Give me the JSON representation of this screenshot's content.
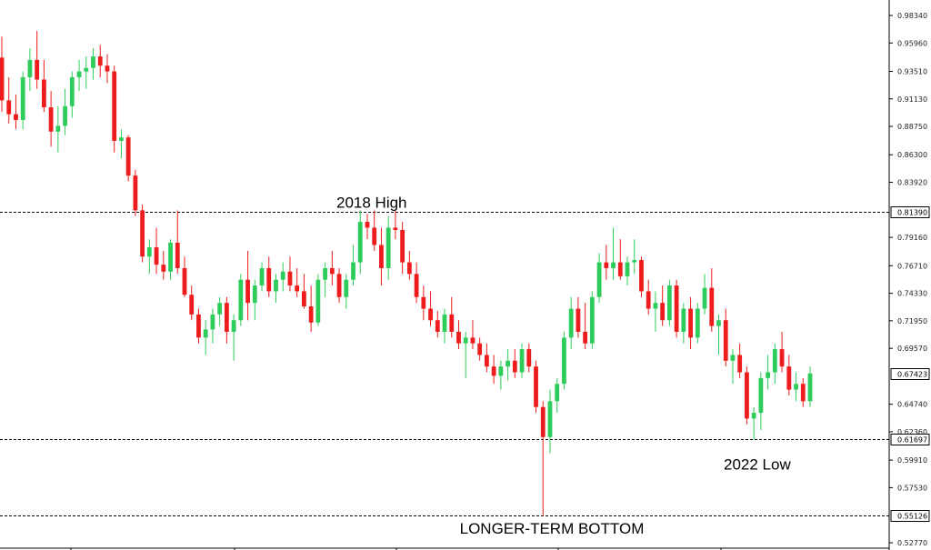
{
  "chart_data": {
    "type": "candlestick",
    "ylim": [
      0.5277,
      0.9834
    ],
    "grid": false,
    "y_axis_side": "right",
    "y_ticks": [
      "0.98340",
      "0.95960",
      "0.93510",
      "0.91130",
      "0.88750",
      "0.86300",
      "0.83920",
      "0.79160",
      "0.76710",
      "0.74330",
      "0.71950",
      "0.69570",
      "0.64740",
      "0.62360",
      "0.59910",
      "0.57530",
      "0.52770"
    ],
    "levels": [
      {
        "value": 0.8139,
        "label": "0.81390",
        "annotation": "2018 High",
        "line_color": "#000000",
        "annotation_anchor": "left"
      },
      {
        "value": 0.61697,
        "label": "0.61697",
        "annotation": "2022 Low",
        "line_color": "#000000",
        "annotation_anchor": "right"
      },
      {
        "value": 0.55126,
        "label": "0.55126",
        "annotation": "LONGER-TERM BOTTOM",
        "line_color": "#000000",
        "annotation_anchor": "center"
      }
    ],
    "current_price": {
      "value": 0.67423,
      "label": "0.67423"
    },
    "colors": {
      "up": "#2ecc5a",
      "down": "#ee1c1c",
      "axis": "#000000"
    },
    "candles": [
      [
        0.947,
        0.965,
        0.9,
        0.91
      ],
      [
        0.91,
        0.93,
        0.89,
        0.898
      ],
      [
        0.898,
        0.915,
        0.885,
        0.893
      ],
      [
        0.893,
        0.935,
        0.885,
        0.93
      ],
      [
        0.93,
        0.955,
        0.918,
        0.945
      ],
      [
        0.945,
        0.97,
        0.92,
        0.928
      ],
      [
        0.928,
        0.945,
        0.9,
        0.904
      ],
      [
        0.904,
        0.918,
        0.87,
        0.883
      ],
      [
        0.883,
        0.905,
        0.865,
        0.888
      ],
      [
        0.888,
        0.92,
        0.88,
        0.905
      ],
      [
        0.905,
        0.935,
        0.895,
        0.93
      ],
      [
        0.93,
        0.945,
        0.918,
        0.935
      ],
      [
        0.935,
        0.948,
        0.92,
        0.938
      ],
      [
        0.938,
        0.955,
        0.928,
        0.948
      ],
      [
        0.948,
        0.958,
        0.93,
        0.94
      ],
      [
        0.94,
        0.95,
        0.925,
        0.935
      ],
      [
        0.935,
        0.94,
        0.865,
        0.875
      ],
      [
        0.875,
        0.885,
        0.86,
        0.878
      ],
      [
        0.878,
        0.88,
        0.84,
        0.845
      ],
      [
        0.845,
        0.85,
        0.81,
        0.815
      ],
      [
        0.815,
        0.82,
        0.77,
        0.775
      ],
      [
        0.775,
        0.79,
        0.76,
        0.783
      ],
      [
        0.783,
        0.8,
        0.76,
        0.768
      ],
      [
        0.768,
        0.78,
        0.755,
        0.762
      ],
      [
        0.762,
        0.79,
        0.755,
        0.787
      ],
      [
        0.787,
        0.815,
        0.76,
        0.765
      ],
      [
        0.765,
        0.775,
        0.74,
        0.742
      ],
      [
        0.742,
        0.75,
        0.72,
        0.725
      ],
      [
        0.725,
        0.73,
        0.7,
        0.705
      ],
      [
        0.705,
        0.72,
        0.69,
        0.712
      ],
      [
        0.712,
        0.73,
        0.7,
        0.725
      ],
      [
        0.725,
        0.74,
        0.715,
        0.735
      ],
      [
        0.735,
        0.74,
        0.7,
        0.71
      ],
      [
        0.71,
        0.725,
        0.685,
        0.72
      ],
      [
        0.72,
        0.76,
        0.715,
        0.755
      ],
      [
        0.755,
        0.78,
        0.72,
        0.735
      ],
      [
        0.735,
        0.755,
        0.72,
        0.75
      ],
      [
        0.75,
        0.77,
        0.745,
        0.765
      ],
      [
        0.765,
        0.775,
        0.74,
        0.745
      ],
      [
        0.745,
        0.76,
        0.735,
        0.755
      ],
      [
        0.755,
        0.77,
        0.745,
        0.762
      ],
      [
        0.762,
        0.775,
        0.745,
        0.75
      ],
      [
        0.75,
        0.765,
        0.74,
        0.745
      ],
      [
        0.745,
        0.76,
        0.73,
        0.732
      ],
      [
        0.732,
        0.75,
        0.71,
        0.718
      ],
      [
        0.718,
        0.76,
        0.715,
        0.755
      ],
      [
        0.755,
        0.77,
        0.74,
        0.765
      ],
      [
        0.765,
        0.78,
        0.75,
        0.76
      ],
      [
        0.76,
        0.765,
        0.735,
        0.74
      ],
      [
        0.74,
        0.76,
        0.73,
        0.755
      ],
      [
        0.755,
        0.785,
        0.75,
        0.77
      ],
      [
        0.77,
        0.815,
        0.76,
        0.805
      ],
      [
        0.805,
        0.812,
        0.79,
        0.8
      ],
      [
        0.8,
        0.815,
        0.78,
        0.785
      ],
      [
        0.785,
        0.8,
        0.75,
        0.765
      ],
      [
        0.765,
        0.81,
        0.755,
        0.8
      ],
      [
        0.8,
        0.815,
        0.79,
        0.798
      ],
      [
        0.798,
        0.805,
        0.76,
        0.77
      ],
      [
        0.77,
        0.78,
        0.755,
        0.76
      ],
      [
        0.76,
        0.77,
        0.735,
        0.74
      ],
      [
        0.74,
        0.75,
        0.72,
        0.73
      ],
      [
        0.73,
        0.745,
        0.715,
        0.72
      ],
      [
        0.72,
        0.728,
        0.705,
        0.71
      ],
      [
        0.71,
        0.73,
        0.7,
        0.725
      ],
      [
        0.725,
        0.74,
        0.705,
        0.71
      ],
      [
        0.71,
        0.72,
        0.695,
        0.7
      ],
      [
        0.7,
        0.71,
        0.67,
        0.705
      ],
      [
        0.705,
        0.72,
        0.695,
        0.7
      ],
      [
        0.7,
        0.705,
        0.685,
        0.69
      ],
      [
        0.69,
        0.7,
        0.675,
        0.68
      ],
      [
        0.68,
        0.69,
        0.665,
        0.672
      ],
      [
        0.672,
        0.685,
        0.66,
        0.68
      ],
      [
        0.68,
        0.695,
        0.668,
        0.685
      ],
      [
        0.685,
        0.695,
        0.67,
        0.675
      ],
      [
        0.675,
        0.7,
        0.67,
        0.695
      ],
      [
        0.695,
        0.7,
        0.675,
        0.68
      ],
      [
        0.68,
        0.685,
        0.64,
        0.645
      ],
      [
        0.645,
        0.65,
        0.551,
        0.619
      ],
      [
        0.619,
        0.66,
        0.605,
        0.65
      ],
      [
        0.65,
        0.67,
        0.64,
        0.665
      ],
      [
        0.665,
        0.71,
        0.66,
        0.705
      ],
      [
        0.705,
        0.74,
        0.695,
        0.73
      ],
      [
        0.73,
        0.74,
        0.705,
        0.71
      ],
      [
        0.71,
        0.735,
        0.695,
        0.7
      ],
      [
        0.7,
        0.745,
        0.695,
        0.74
      ],
      [
        0.74,
        0.778,
        0.735,
        0.77
      ],
      [
        0.77,
        0.785,
        0.755,
        0.765
      ],
      [
        0.765,
        0.8,
        0.755,
        0.77
      ],
      [
        0.77,
        0.79,
        0.755,
        0.758
      ],
      [
        0.758,
        0.775,
        0.75,
        0.77
      ],
      [
        0.77,
        0.79,
        0.76,
        0.772
      ],
      [
        0.772,
        0.775,
        0.74,
        0.745
      ],
      [
        0.745,
        0.755,
        0.725,
        0.73
      ],
      [
        0.73,
        0.745,
        0.71,
        0.735
      ],
      [
        0.735,
        0.75,
        0.715,
        0.72
      ],
      [
        0.72,
        0.755,
        0.715,
        0.75
      ],
      [
        0.75,
        0.755,
        0.705,
        0.71
      ],
      [
        0.71,
        0.735,
        0.7,
        0.73
      ],
      [
        0.73,
        0.74,
        0.695,
        0.705
      ],
      [
        0.705,
        0.735,
        0.7,
        0.73
      ],
      [
        0.73,
        0.76,
        0.725,
        0.748
      ],
      [
        0.748,
        0.765,
        0.71,
        0.715
      ],
      [
        0.715,
        0.725,
        0.69,
        0.72
      ],
      [
        0.72,
        0.73,
        0.68,
        0.685
      ],
      [
        0.685,
        0.695,
        0.665,
        0.69
      ],
      [
        0.69,
        0.7,
        0.67,
        0.675
      ],
      [
        0.675,
        0.68,
        0.63,
        0.635
      ],
      [
        0.635,
        0.645,
        0.617,
        0.64
      ],
      [
        0.64,
        0.675,
        0.625,
        0.67
      ],
      [
        0.67,
        0.69,
        0.66,
        0.675
      ],
      [
        0.675,
        0.7,
        0.665,
        0.695
      ],
      [
        0.695,
        0.71,
        0.675,
        0.68
      ],
      [
        0.68,
        0.69,
        0.655,
        0.66
      ],
      [
        0.66,
        0.675,
        0.65,
        0.665
      ],
      [
        0.665,
        0.67,
        0.645,
        0.65
      ],
      [
        0.65,
        0.68,
        0.645,
        0.674
      ]
    ],
    "x_axis_labels": [
      "",
      "",
      "",
      "",
      ""
    ]
  }
}
